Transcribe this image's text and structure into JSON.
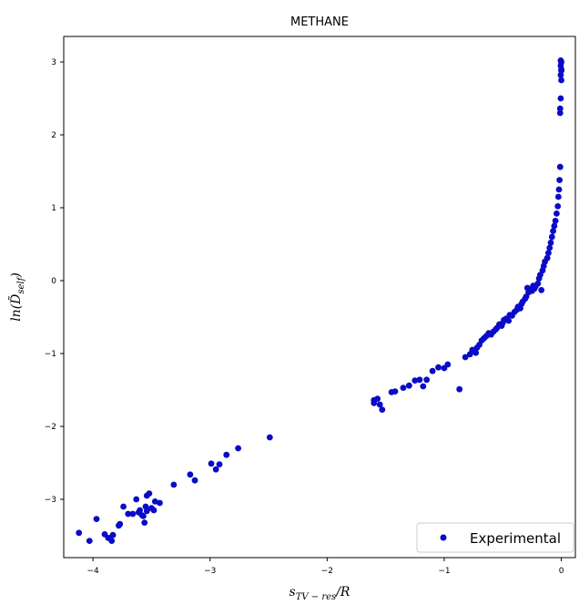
{
  "chart_data": {
    "type": "scatter",
    "title": "METHANE",
    "xlabel": "s_{TV-res}/R",
    "ylabel": "ln(D̃_self)",
    "xlim": [
      -4.25,
      0.12
    ],
    "ylim": [
      -3.8,
      3.35
    ],
    "xticks": [
      -4,
      -3,
      -2,
      -1,
      0
    ],
    "xtick_labels": [
      "−4",
      "−3",
      "−2",
      "−1",
      "0"
    ],
    "yticks": [
      -3,
      -2,
      -1,
      0,
      1,
      2,
      3
    ],
    "ytick_labels": [
      "−3",
      "−2",
      "−1",
      "0",
      "1",
      "2",
      "3"
    ],
    "grid": false,
    "legend_position": "bottom-right",
    "color": "#0a0ac8",
    "series": [
      {
        "name": "Experimental",
        "x": [
          -4.12,
          -4.03,
          -3.97,
          -3.9,
          -3.87,
          -3.84,
          -3.83,
          -3.78,
          -3.77,
          -3.74,
          -3.7,
          -3.66,
          -3.63,
          -3.61,
          -3.6,
          -3.58,
          -3.57,
          -3.56,
          -3.55,
          -3.54,
          -3.54,
          -3.52,
          -3.5,
          -3.48,
          -3.47,
          -3.43,
          -3.31,
          -3.17,
          -3.13,
          -2.99,
          -2.95,
          -2.92,
          -2.86,
          -2.76,
          -2.49,
          -1.6,
          -1.6,
          -1.57,
          -1.55,
          -1.53,
          -1.45,
          -1.42,
          -1.35,
          -1.3,
          -1.25,
          -1.21,
          -1.18,
          -1.15,
          -1.1,
          -1.05,
          -1.0,
          -0.97,
          -0.87,
          -0.82,
          -0.78,
          -0.76,
          -0.73,
          -0.72,
          -0.7,
          -0.68,
          -0.66,
          -0.64,
          -0.62,
          -0.6,
          -0.58,
          -0.56,
          -0.55,
          -0.53,
          -0.51,
          -0.5,
          -0.49,
          -0.47,
          -0.45,
          -0.44,
          -0.42,
          -0.4,
          -0.38,
          -0.37,
          -0.35,
          -0.34,
          -0.33,
          -0.31,
          -0.3,
          -0.29,
          -0.28,
          -0.26,
          -0.25,
          -0.24,
          -0.23,
          -0.22,
          -0.2,
          -0.19,
          -0.18,
          -0.17,
          -0.16,
          -0.15,
          -0.14,
          -0.12,
          -0.11,
          -0.1,
          -0.09,
          -0.08,
          -0.07,
          -0.06,
          -0.05,
          -0.04,
          -0.03,
          -0.025,
          -0.02,
          -0.015,
          -0.01,
          -0.01,
          -0.01,
          -0.005,
          0.0,
          -0.005,
          0.0,
          -0.005,
          0.0,
          -0.005,
          0.0
        ],
        "y": [
          -3.46,
          -3.57,
          -3.27,
          -3.48,
          -3.53,
          -3.57,
          -3.49,
          -3.36,
          -3.34,
          -3.1,
          -3.2,
          -3.2,
          -3.0,
          -3.18,
          -3.15,
          -3.22,
          -3.23,
          -3.32,
          -3.1,
          -2.95,
          -3.16,
          -2.92,
          -3.12,
          -3.15,
          -3.03,
          -3.05,
          -2.8,
          -2.66,
          -2.74,
          -2.51,
          -2.59,
          -2.52,
          -2.39,
          -2.3,
          -2.15,
          -1.64,
          -1.68,
          -1.62,
          -1.7,
          -1.77,
          -1.53,
          -1.52,
          -1.47,
          -1.44,
          -1.37,
          -1.36,
          -1.45,
          -1.36,
          -1.24,
          -1.19,
          -1.2,
          -1.15,
          -1.49,
          -1.05,
          -1.01,
          -0.95,
          -0.99,
          -0.92,
          -0.88,
          -0.82,
          -0.79,
          -0.76,
          -0.72,
          -0.74,
          -0.7,
          -0.67,
          -0.65,
          -0.6,
          -0.62,
          -0.58,
          -0.54,
          -0.52,
          -0.55,
          -0.47,
          -0.48,
          -0.43,
          -0.4,
          -0.36,
          -0.38,
          -0.32,
          -0.29,
          -0.25,
          -0.22,
          -0.1,
          -0.16,
          -0.12,
          -0.14,
          -0.07,
          -0.11,
          -0.08,
          -0.04,
          0.03,
          0.08,
          -0.13,
          0.14,
          0.2,
          0.26,
          0.31,
          0.38,
          0.45,
          0.52,
          0.6,
          0.68,
          0.75,
          0.82,
          0.92,
          1.02,
          1.15,
          1.25,
          1.38,
          1.56,
          2.3,
          2.36,
          2.5,
          2.75,
          2.82,
          2.9,
          2.95,
          3.0,
          3.02,
          2.88
        ]
      }
    ]
  }
}
